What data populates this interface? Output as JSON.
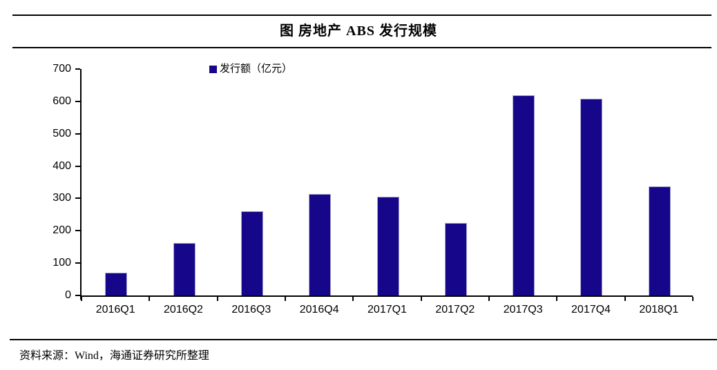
{
  "figure": {
    "title": "图 房地产 ABS 发行规模"
  },
  "chart_data": {
    "type": "bar",
    "title": "图 房地产 ABS 发行规模",
    "legend": "发行额（亿元）",
    "legend_position": "top-center",
    "categories": [
      "2016Q1",
      "2016Q2",
      "2016Q3",
      "2016Q4",
      "2017Q1",
      "2017Q2",
      "2017Q3",
      "2017Q4",
      "2018Q1"
    ],
    "values": [
      69,
      160,
      259,
      311,
      303,
      222,
      616,
      607,
      334
    ],
    "xlabel": "",
    "ylabel": "",
    "ylim": [
      0,
      700
    ],
    "yticks": [
      0,
      100,
      200,
      300,
      400,
      500,
      600,
      700
    ],
    "grid": false
  },
  "footer": {
    "source": "资料来源：Wind，海通证券研究所整理"
  },
  "colors": {
    "bar_fill": "#160689",
    "bar_edge": "#a9a6d2",
    "axis": "#000000",
    "text": "#000000"
  }
}
